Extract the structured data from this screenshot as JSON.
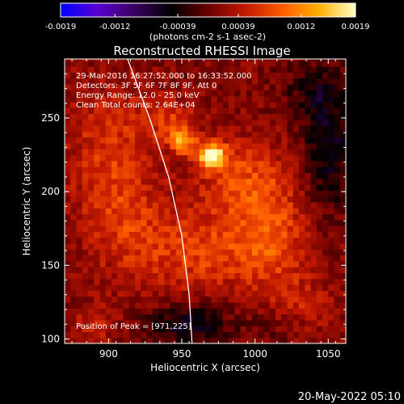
{
  "chart_data": {
    "type": "heatmap",
    "title": "Reconstructed RHESSI Image",
    "xlabel": "Heliocentric X (arcsec)",
    "ylabel": "Heliocentric Y (arcsec)",
    "xlim": [
      870,
      1062
    ],
    "ylim": [
      97,
      290
    ],
    "xticks": [
      900,
      950,
      1000,
      1050
    ],
    "yticks": [
      100,
      150,
      200,
      250
    ],
    "xtick_labels": [
      "900",
      "950",
      "1000",
      "1050"
    ],
    "ytick_labels": [
      "100",
      "150",
      "200",
      "250"
    ],
    "colorbar": {
      "range": [
        -0.0019,
        0.0019
      ],
      "ticks": [
        -0.0019,
        -0.0012,
        -0.00039,
        0.00039,
        0.0012,
        0.0019
      ],
      "tick_labels": [
        "-0.0019",
        "-0.0012",
        "-0.00039",
        "0.00039",
        "0.0012",
        "0.0019"
      ],
      "unit_label": "(photons cm-2 s-1 asec-2)",
      "stops": [
        "#0000ff",
        "#5a00d0",
        "#3a0060",
        "#000000",
        "#6a0000",
        "#c01800",
        "#ff5a00",
        "#ffb000",
        "#ffffc8"
      ]
    },
    "annotations": [
      "29-Mar-2016 16:27:52.000 to 16:33:52.000",
      "Detectors: 3F 5F 6F 7F 8F 9F, Att 0",
      "Energy Range: 12.0 - 25.0 keV",
      "Clean     Total counts: 2.64E+04"
    ],
    "peak_label": "Position of Peak = [971,225]",
    "peak_position": [
      971,
      225
    ],
    "sources": [
      {
        "x": 970,
        "y": 225,
        "amp": 0.00165,
        "sx": 7,
        "sy": 6
      },
      {
        "x": 950,
        "y": 235,
        "amp": 0.0012,
        "sx": 6,
        "sy": 6
      },
      {
        "x": 940,
        "y": 250,
        "amp": 0.0005,
        "sx": 14,
        "sy": 10
      },
      {
        "x": 990,
        "y": 210,
        "amp": 0.0006,
        "sx": 22,
        "sy": 18
      },
      {
        "x": 1010,
        "y": 170,
        "amp": 0.0007,
        "sx": 18,
        "sy": 25
      },
      {
        "x": 960,
        "y": 160,
        "amp": 0.0006,
        "sx": 30,
        "sy": 20
      },
      {
        "x": 900,
        "y": 230,
        "amp": 0.0005,
        "sx": 20,
        "sy": 30
      },
      {
        "x": 910,
        "y": 180,
        "amp": 0.00045,
        "sx": 18,
        "sy": 25
      },
      {
        "x": 1030,
        "y": 120,
        "amp": 0.0004,
        "sx": 15,
        "sy": 15
      },
      {
        "x": 890,
        "y": 110,
        "amp": 0.0004,
        "sx": 10,
        "sy": 10
      },
      {
        "x": 1050,
        "y": 230,
        "amp": -0.0007,
        "sx": 12,
        "sy": 30
      },
      {
        "x": 1040,
        "y": 270,
        "amp": -0.0004,
        "sx": 15,
        "sy": 12
      },
      {
        "x": 955,
        "y": 110,
        "amp": -0.0007,
        "sx": 20,
        "sy": 10
      },
      {
        "x": 1020,
        "y": 110,
        "amp": -0.0003,
        "sx": 15,
        "sy": 10
      }
    ],
    "limb": [
      [
        913,
        290
      ],
      [
        928,
        250
      ],
      [
        941,
        210
      ],
      [
        950,
        170
      ],
      [
        955,
        130
      ],
      [
        957,
        97
      ]
    ],
    "timestamp": "20-May-2022 05:10"
  }
}
